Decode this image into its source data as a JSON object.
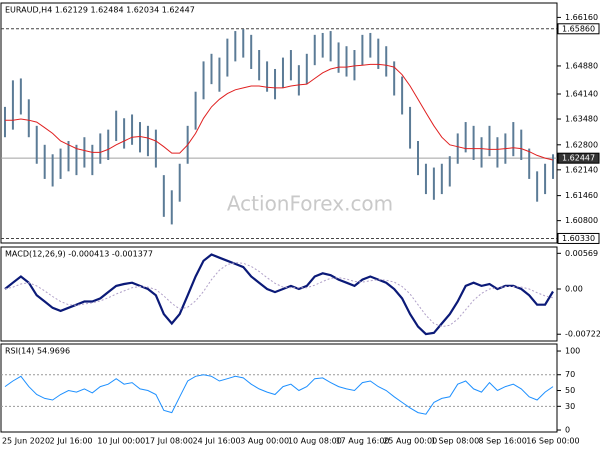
{
  "chart_data": [
    {
      "type": "ohlc",
      "title": "EURAUD,H4  1.62129 1.62484 1.62034 1.62447",
      "watermark": "ActionForex.com",
      "categories": [
        "25 Jun 2020",
        null,
        null,
        null,
        null,
        null,
        "2 Jul 16:00",
        null,
        null,
        null,
        null,
        null,
        "10 Jul 00:00",
        null,
        null,
        null,
        null,
        null,
        "17 Jul 08:00",
        null,
        null,
        null,
        null,
        null,
        "24 Jul 16:00",
        null,
        null,
        null,
        null,
        null,
        "3 Aug 00:00",
        null,
        null,
        null,
        null,
        null,
        "10 Aug 08:00",
        null,
        null,
        null,
        null,
        null,
        "17 Aug 16:00",
        null,
        null,
        null,
        null,
        null,
        "25 Aug 00:00",
        null,
        null,
        null,
        null,
        null,
        "1 Sep 08:00",
        null,
        null,
        null,
        null,
        null,
        "8 Sep 16:00",
        null,
        null,
        null,
        null,
        null,
        "16 Sep 00:00",
        null,
        null,
        null
      ],
      "ylim": [
        1.6021,
        1.6654
      ],
      "yticks": [
        {
          "value": 1.6616,
          "label": "1.66160"
        },
        {
          "value": 1.6488,
          "label": "1.64880"
        },
        {
          "value": 1.6414,
          "label": "1.64140"
        },
        {
          "value": 1.6348,
          "label": "1.63480"
        },
        {
          "value": 1.628,
          "label": "1.62800"
        },
        {
          "value": 1.6214,
          "label": "1.62140"
        },
        {
          "value": 1.6146,
          "label": "1.61460"
        },
        {
          "value": 1.608,
          "label": "1.60800"
        }
      ],
      "levels": [
        {
          "value": 1.6586,
          "label": "1.65860",
          "style": "dashed"
        },
        {
          "value": 1.62447,
          "label": "1.62447",
          "style": "current"
        },
        {
          "value": 1.6033,
          "label": "1.60330",
          "style": "dashed"
        }
      ],
      "bars": {
        "color": "#5b7b96",
        "high": [
          1.638,
          1.645,
          1.6455,
          1.64,
          1.633,
          1.628,
          1.6255,
          1.627,
          1.629,
          1.628,
          1.63,
          1.628,
          1.631,
          1.632,
          1.637,
          1.635,
          1.636,
          1.634,
          1.633,
          1.632,
          1.62,
          1.616,
          1.623,
          1.633,
          1.642,
          1.65,
          1.652,
          1.651,
          1.656,
          1.658,
          1.6585,
          1.657,
          1.653,
          1.65,
          1.648,
          1.651,
          1.653,
          1.649,
          1.652,
          1.657,
          1.6575,
          1.658,
          1.655,
          1.654,
          1.653,
          1.657,
          1.6575,
          1.656,
          1.654,
          1.65,
          1.646,
          1.638,
          1.629,
          1.623,
          1.622,
          1.623,
          1.625,
          1.631,
          1.634,
          1.633,
          1.63,
          1.633,
          1.63,
          1.631,
          1.634,
          1.632,
          1.627,
          1.621,
          1.623,
          1.6255
        ],
        "low": [
          1.63,
          1.632,
          1.636,
          1.63,
          1.623,
          1.619,
          1.617,
          1.619,
          1.621,
          1.62,
          1.622,
          1.62,
          1.623,
          1.624,
          1.629,
          1.627,
          1.628,
          1.626,
          1.625,
          1.622,
          1.609,
          1.607,
          1.613,
          1.623,
          1.632,
          1.64,
          1.644,
          1.642,
          1.646,
          1.65,
          1.651,
          1.648,
          1.645,
          1.642,
          1.64,
          1.643,
          1.645,
          1.641,
          1.644,
          1.649,
          1.651,
          1.65,
          1.647,
          1.646,
          1.645,
          1.649,
          1.651,
          1.648,
          1.646,
          1.641,
          1.636,
          1.627,
          1.62,
          1.615,
          1.6135,
          1.615,
          1.617,
          1.623,
          1.626,
          1.624,
          1.622,
          1.625,
          1.622,
          1.623,
          1.625,
          1.624,
          1.619,
          1.613,
          1.615,
          1.619
        ]
      },
      "ma": {
        "color": "#e02020",
        "values": [
          1.6345,
          1.6345,
          1.6348,
          1.6345,
          1.634,
          1.6325,
          1.631,
          1.629,
          1.628,
          1.627,
          1.6265,
          1.626,
          1.626,
          1.6268,
          1.628,
          1.629,
          1.63,
          1.6302,
          1.6298,
          1.629,
          1.6275,
          1.6258,
          1.6258,
          1.628,
          1.631,
          1.635,
          1.638,
          1.64,
          1.6415,
          1.6425,
          1.643,
          1.6435,
          1.6435,
          1.6432,
          1.643,
          1.643,
          1.6435,
          1.6438,
          1.644,
          1.6455,
          1.647,
          1.648,
          1.6485,
          1.6485,
          1.6488,
          1.649,
          1.6492,
          1.6492,
          1.649,
          1.6485,
          1.6465,
          1.6435,
          1.64,
          1.6365,
          1.633,
          1.63,
          1.628,
          1.6275,
          1.627,
          1.627,
          1.627,
          1.6268,
          1.6268,
          1.627,
          1.6272,
          1.627,
          1.6262,
          1.6252,
          1.6245,
          1.624
        ]
      }
    },
    {
      "type": "macd",
      "title": "MACD(12,26,9) -0.000413 -0.001377",
      "ylim": [
        -0.0083,
        0.0067
      ],
      "yticks": [
        {
          "value": 0.00569,
          "label": "0.00569"
        },
        {
          "value": 0,
          "label": "0.00"
        },
        {
          "value": -0.00722,
          "label": "-0.00722"
        }
      ],
      "series": [
        {
          "color": "#0b1a78",
          "style": "solid",
          "values": [
            0.0,
            0.001,
            0.002,
            0.001,
            -0.001,
            -0.002,
            -0.003,
            -0.0035,
            -0.003,
            -0.0025,
            -0.002,
            -0.002,
            -0.0015,
            -0.0005,
            0.0005,
            0.0008,
            0.001,
            0.0005,
            0.0,
            -0.001,
            -0.004,
            -0.0055,
            -0.004,
            -0.001,
            0.002,
            0.0045,
            0.0055,
            0.005,
            0.0045,
            0.004,
            0.0035,
            0.002,
            0.001,
            0.0,
            -0.0005,
            0.0,
            0.0005,
            0.0,
            0.0005,
            0.002,
            0.0025,
            0.0022,
            0.0015,
            0.001,
            0.0005,
            0.0015,
            0.002,
            0.0015,
            0.001,
            0.0,
            -0.0015,
            -0.004,
            -0.006,
            -0.0072,
            -0.007,
            -0.0055,
            -0.004,
            -0.002,
            0.0005,
            0.001,
            0.0005,
            0.0008,
            0.0,
            0.0005,
            0.0005,
            0.0,
            -0.001,
            -0.0025,
            -0.0025,
            -0.0004
          ]
        },
        {
          "color": "#b0a0c8",
          "style": "dotted",
          "values": [
            0.0,
            0.0003,
            0.0008,
            0.001,
            0.0005,
            -0.0003,
            -0.0012,
            -0.002,
            -0.0025,
            -0.0026,
            -0.0024,
            -0.0022,
            -0.0019,
            -0.0014,
            -0.0008,
            -0.0003,
            0.0002,
            0.0004,
            0.0003,
            -0.0001,
            -0.0011,
            -0.0023,
            -0.0032,
            -0.0029,
            -0.0019,
            -0.0004,
            0.0015,
            0.003,
            0.0039,
            0.0042,
            0.0041,
            0.0036,
            0.0028,
            0.0018,
            0.0009,
            0.0003,
            0.0002,
            0.0002,
            0.0002,
            0.0006,
            0.0012,
            0.0017,
            0.0018,
            0.0016,
            0.0012,
            0.0011,
            0.0013,
            0.0015,
            0.0014,
            0.0011,
            0.0004,
            -0.0008,
            -0.0025,
            -0.0042,
            -0.0055,
            -0.006,
            -0.0058,
            -0.0048,
            -0.0033,
            -0.0018,
            -0.0007,
            0.0,
            0.0002,
            0.0004,
            0.0004,
            0.0003,
            0.0,
            -0.0006,
            -0.0011,
            -0.0014
          ]
        }
      ]
    },
    {
      "type": "rsi",
      "title": "RSI(14) 54.9696",
      "ylim": [
        -2.5,
        108.9
      ],
      "yticks": [
        100,
        70,
        50,
        30,
        0
      ],
      "levels": [
        70,
        30
      ],
      "series": [
        {
          "color": "#1e90ff",
          "values": [
            55,
            62,
            68,
            55,
            45,
            40,
            38,
            45,
            50,
            48,
            52,
            47,
            55,
            58,
            65,
            58,
            60,
            52,
            50,
            45,
            25,
            22,
            42,
            62,
            68,
            70,
            68,
            62,
            65,
            68,
            66,
            58,
            52,
            48,
            45,
            55,
            58,
            50,
            55,
            65,
            66,
            60,
            55,
            52,
            50,
            60,
            62,
            55,
            50,
            42,
            35,
            28,
            22,
            20,
            35,
            40,
            42,
            58,
            62,
            52,
            48,
            60,
            50,
            55,
            58,
            52,
            42,
            38,
            48,
            55
          ]
        }
      ]
    }
  ]
}
